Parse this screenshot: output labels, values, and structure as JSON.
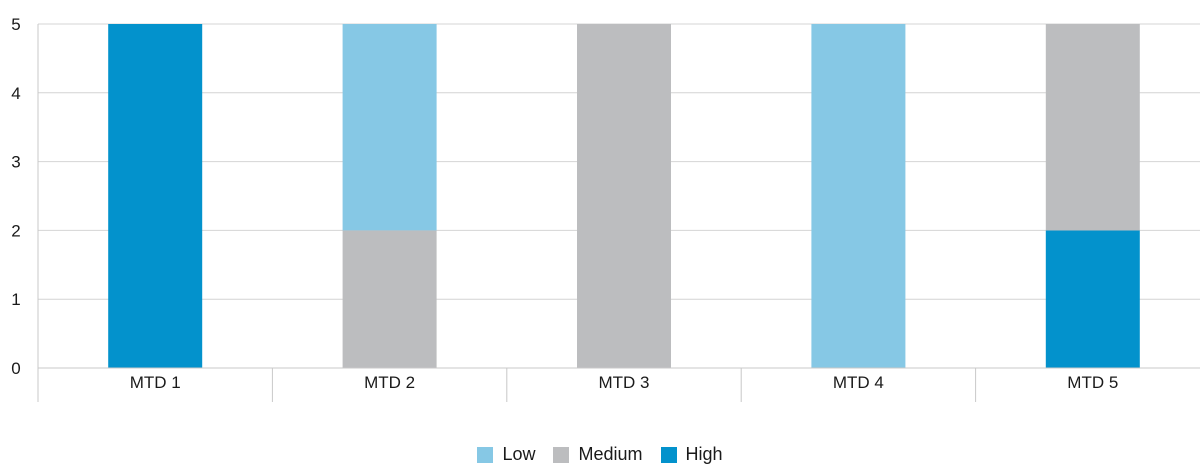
{
  "chart_data": {
    "type": "bar",
    "stacked": true,
    "categories": [
      "MTD 1",
      "MTD 2",
      "MTD 3",
      "MTD 4",
      "MTD 5"
    ],
    "series": [
      {
        "name": "High",
        "color": "#0392cc",
        "values": [
          5,
          0,
          0,
          0,
          2
        ]
      },
      {
        "name": "Medium",
        "color": "#bcbdbf",
        "values": [
          0,
          2,
          5,
          0,
          3
        ]
      },
      {
        "name": "Low",
        "color": "#86c8e5",
        "values": [
          0,
          3,
          0,
          5,
          0
        ]
      }
    ],
    "legend_order": [
      "Low",
      "Medium",
      "High"
    ],
    "y_ticks": [
      "0",
      "1",
      "2",
      "3",
      "4",
      "5"
    ],
    "ylim": [
      0,
      5
    ],
    "grid": true,
    "legend_position": "bottom"
  }
}
